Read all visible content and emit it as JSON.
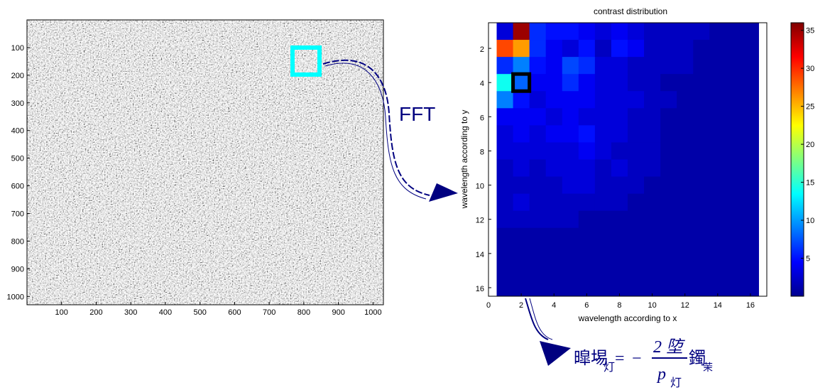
{
  "speckle_image": {
    "x_ticks": [
      "100",
      "200",
      "300",
      "400",
      "500",
      "600",
      "700",
      "800",
      "900",
      "1000"
    ],
    "y_ticks": [
      "100",
      "200",
      "300",
      "400",
      "500",
      "600",
      "700",
      "800",
      "900",
      "1000"
    ],
    "xlim": [
      0,
      1030
    ],
    "ylim": [
      0,
      1030
    ]
  },
  "fft_label": "FFT",
  "chart_data": {
    "type": "heatmap",
    "title": "contrast distribution",
    "xlabel": "wavelength according to x",
    "ylabel": "wavelength according to y",
    "xlim": [
      0,
      17
    ],
    "ylim": [
      0.5,
      16.5
    ],
    "x_ticks": [
      "0",
      "2",
      "4",
      "6",
      "8",
      "10",
      "12",
      "14",
      "16"
    ],
    "y_ticks": [
      "2",
      "4",
      "6",
      "8",
      "10",
      "12",
      "14",
      "16"
    ],
    "colorbar": {
      "min": 0,
      "max": 36,
      "ticks": [
        "5",
        "10",
        "15",
        "20",
        "25",
        "30",
        "35"
      ]
    },
    "colormap": [
      "#00008f",
      "#0000ff",
      "#0080ff",
      "#00ffff",
      "#80ff80",
      "#ffff00",
      "#ff8000",
      "#ff0000",
      "#800000"
    ],
    "highlight_cell": [
      2,
      4
    ],
    "matrix": [
      [
        3,
        35,
        6,
        5,
        5,
        4,
        3,
        4,
        3,
        2,
        2,
        2,
        2,
        1,
        1,
        1
      ],
      [
        29,
        26,
        6,
        4,
        3,
        5,
        2,
        5,
        4,
        2,
        2,
        2,
        1,
        1,
        1,
        1
      ],
      [
        6,
        9,
        5,
        4,
        7,
        6,
        3,
        3,
        2,
        2,
        2,
        2,
        1,
        1,
        1,
        1
      ],
      [
        14,
        8,
        4,
        4,
        6,
        4,
        3,
        3,
        2,
        2,
        1,
        1,
        1,
        1,
        1,
        1
      ],
      [
        9,
        5,
        3,
        4,
        4,
        4,
        3,
        3,
        3,
        2,
        2,
        1,
        1,
        1,
        1,
        1
      ],
      [
        4,
        4,
        4,
        3,
        4,
        3,
        3,
        3,
        2,
        2,
        1,
        1,
        1,
        1,
        1,
        1
      ],
      [
        3,
        4,
        3,
        4,
        4,
        5,
        3,
        3,
        2,
        2,
        1,
        1,
        1,
        1,
        1,
        1
      ],
      [
        3,
        3,
        3,
        3,
        3,
        4,
        3,
        2,
        2,
        2,
        1,
        1,
        1,
        1,
        1,
        1
      ],
      [
        2,
        3,
        2,
        3,
        3,
        3,
        2,
        3,
        2,
        2,
        1,
        1,
        1,
        1,
        1,
        1
      ],
      [
        2,
        2,
        2,
        2,
        3,
        3,
        2,
        2,
        2,
        1,
        1,
        1,
        1,
        1,
        1,
        1
      ],
      [
        2,
        3,
        2,
        2,
        2,
        2,
        2,
        2,
        1,
        1,
        1,
        1,
        1,
        1,
        1,
        1
      ],
      [
        2,
        2,
        2,
        2,
        2,
        1,
        1,
        1,
        1,
        1,
        1,
        1,
        1,
        1,
        1,
        1
      ],
      [
        1,
        1,
        1,
        1,
        1,
        1,
        1,
        1,
        1,
        1,
        1,
        1,
        1,
        1,
        1,
        1
      ],
      [
        1,
        1,
        1,
        1,
        1,
        1,
        1,
        1,
        1,
        1,
        1,
        1,
        1,
        1,
        1,
        1
      ],
      [
        1,
        1,
        1,
        1,
        1,
        1,
        1,
        1,
        1,
        1,
        1,
        1,
        1,
        1,
        1,
        1
      ],
      [
        1,
        1,
        1,
        1,
        1,
        1,
        1,
        1,
        1,
        1,
        1,
        1,
        1,
        1,
        1,
        1
      ]
    ]
  },
  "formula": {
    "lhs_main": "暭埸",
    "lhs_sub": "灯",
    "operator": "=",
    "minus": "−",
    "numerator": "2 埅",
    "denominator_main": "p",
    "denominator_sub": "灯",
    "rhs_main": "鐲",
    "rhs_sub": "茉"
  },
  "colors": {
    "arrow": "#000080",
    "roi": "#00ffff",
    "highlight": "#000000",
    "formula": "#000080"
  }
}
